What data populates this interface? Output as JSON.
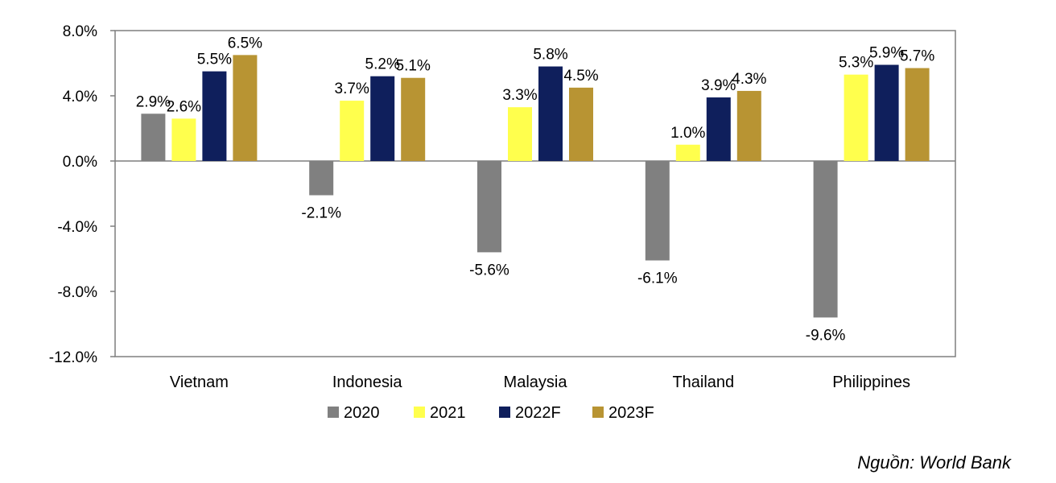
{
  "chart_data": {
    "type": "bar",
    "title": "",
    "xlabel": "",
    "ylabel": "",
    "categories": [
      "Vietnam",
      "Indonesia",
      "Malaysia",
      "Thailand",
      "Philippines"
    ],
    "series": [
      {
        "name": "2020",
        "color": "#808080",
        "values": [
          2.9,
          -2.1,
          -5.6,
          -6.1,
          -9.6
        ],
        "labels": [
          "2.9%",
          "-2.1%",
          "-5.6%",
          "-6.1%",
          "-9.6%"
        ]
      },
      {
        "name": "2021",
        "color": "#FFFF4D",
        "values": [
          2.6,
          3.7,
          3.3,
          1.0,
          5.3
        ],
        "labels": [
          "2.6%",
          "3.7%",
          "3.3%",
          "1.0%",
          "5.3%"
        ]
      },
      {
        "name": "2022F",
        "color": "#0F1F5C",
        "values": [
          5.5,
          5.2,
          5.8,
          3.9,
          5.9
        ],
        "labels": [
          "5.5%",
          "5.2%",
          "5.8%",
          "3.9%",
          "5.9%"
        ]
      },
      {
        "name": "2023F",
        "color": "#B89433",
        "values": [
          6.5,
          5.1,
          4.5,
          4.3,
          5.7
        ],
        "labels": [
          "6.5%",
          "5.1%",
          "4.5%",
          "4.3%",
          "5.7%"
        ]
      }
    ],
    "ylim": [
      -12,
      8
    ],
    "yticks": [
      8,
      4,
      0,
      -4,
      -8,
      -12
    ],
    "ytick_labels": [
      "8.0%",
      "4.0%",
      "0.0%",
      "-4.0%",
      "-8.0%",
      "-12.0%"
    ],
    "grid": false,
    "legend_position": "bottom"
  },
  "source": "Nguồn: World Bank"
}
